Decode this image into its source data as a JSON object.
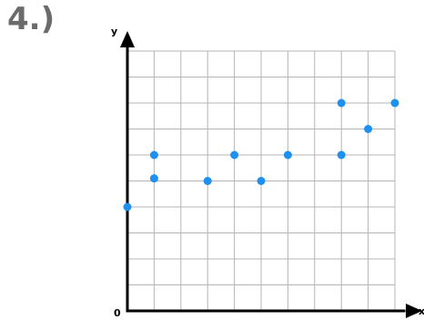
{
  "problem": {
    "number": "4.)"
  },
  "chart_data": {
    "type": "scatter",
    "title": "",
    "xlabel": "x",
    "ylabel": "y",
    "origin_label": "0",
    "xlim": [
      0,
      10
    ],
    "ylim": [
      0,
      10
    ],
    "grid": true,
    "tick_labels_shown": false,
    "points": [
      {
        "x": 0,
        "y": 4
      },
      {
        "x": 1,
        "y": 5.1
      },
      {
        "x": 1,
        "y": 6
      },
      {
        "x": 3,
        "y": 5
      },
      {
        "x": 4,
        "y": 6
      },
      {
        "x": 5,
        "y": 5
      },
      {
        "x": 6,
        "y": 6
      },
      {
        "x": 8,
        "y": 6
      },
      {
        "x": 8,
        "y": 8
      },
      {
        "x": 9,
        "y": 7
      },
      {
        "x": 10,
        "y": 8
      }
    ],
    "marker_color": "#1e90ef",
    "axis_color": "#000000",
    "grid_color": "#b5b5b5"
  }
}
